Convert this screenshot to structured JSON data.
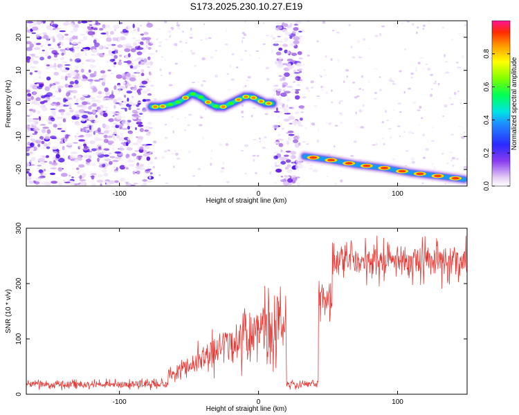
{
  "title": "S173.2025.230.10.27.E19",
  "chart_data": [
    {
      "type": "heatmap",
      "name": "spectrogram",
      "xlabel": "Height of straight line (km)",
      "ylabel": "Frequency (Hz)",
      "xlim": [
        -167,
        150
      ],
      "ylim": [
        -25,
        25
      ],
      "xticks": [
        -100,
        0,
        100
      ],
      "yticks": [
        -20,
        -10,
        0,
        10,
        20
      ],
      "colorbar": {
        "label": "Normalized spectral amplitude",
        "range": [
          0,
          1
        ],
        "ticks": [
          "0.0",
          "0.2",
          "0.4",
          "0.6",
          "0.8"
        ]
      },
      "segments": [
        {
          "name": "noise-left",
          "x_start": -167,
          "x_end": -77,
          "kind": "noise"
        },
        {
          "name": "signal-middle",
          "x_start": -77,
          "x_end": 12,
          "trace": [
            [
              -77,
              -1
            ],
            [
              -70,
              -1
            ],
            [
              -60,
              0
            ],
            [
              -55,
              1
            ],
            [
              -48,
              3
            ],
            [
              -42,
              2
            ],
            [
              -35,
              0
            ],
            [
              -30,
              -1
            ],
            [
              -25,
              -1
            ],
            [
              -20,
              0
            ],
            [
              -15,
              1
            ],
            [
              -10,
              2
            ],
            [
              -5,
              2
            ],
            [
              0,
              1
            ],
            [
              5,
              0
            ],
            [
              10,
              0
            ]
          ]
        },
        {
          "name": "noise-gap",
          "x_start": 12,
          "x_end": 31,
          "kind": "noise"
        },
        {
          "name": "signal-right",
          "x_start": 31,
          "x_end": 150,
          "trace": [
            [
              33,
              -16
            ],
            [
              50,
              -17
            ],
            [
              70,
              -18.5
            ],
            [
              90,
              -19.5
            ],
            [
              110,
              -21
            ],
            [
              130,
              -22
            ],
            [
              148,
              -23
            ]
          ]
        }
      ]
    },
    {
      "type": "line",
      "name": "snr",
      "xlabel": "Height of straight line (km)",
      "ylabel": "SNR (10 * v/v)",
      "xlim": [
        -167,
        150
      ],
      "ylim": [
        0,
        300
      ],
      "xticks": [
        -100,
        0,
        100
      ],
      "yticks": [
        0,
        100,
        200,
        300
      ],
      "color": "#e53935",
      "series_profile": [
        {
          "x_start": -167,
          "x_end": -65,
          "mean": 18,
          "amplitude": 12
        },
        {
          "x_start": -65,
          "x_end": 20,
          "mean_from": 35,
          "mean_to": 140,
          "amplitude": 80
        },
        {
          "x_start": 20,
          "x_end": 43,
          "mean": 18,
          "amplitude": 12
        },
        {
          "x_start": 43,
          "x_end": 53,
          "mean": 170,
          "amplitude": 60
        },
        {
          "x_start": 53,
          "x_end": 150,
          "mean": 240,
          "amplitude": 50
        }
      ]
    }
  ]
}
